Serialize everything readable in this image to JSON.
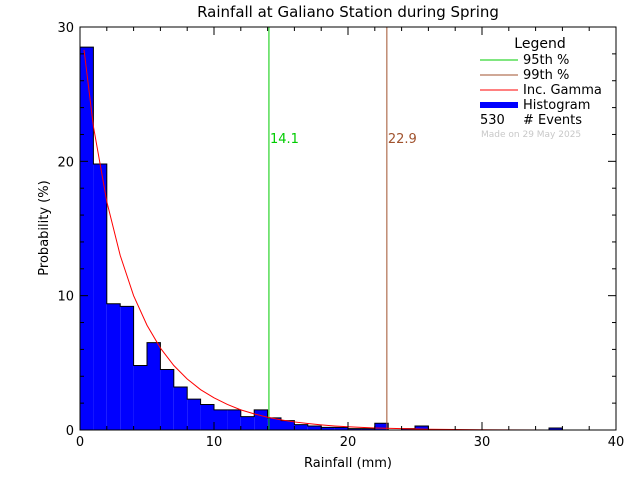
{
  "chart_data": {
    "type": "bar",
    "title": "Rainfall at Galiano Station during Spring",
    "xlabel": "Rainfall (mm)",
    "ylabel": "Probability (%)",
    "xlim": [
      0,
      40
    ],
    "ylim": [
      0,
      30
    ],
    "x_ticks": [
      0,
      10,
      20,
      30,
      40
    ],
    "y_ticks": [
      0,
      10,
      20,
      30
    ],
    "bin_width": 1,
    "histogram": {
      "name": "Histogram",
      "bin_starts": [
        0,
        1,
        2,
        3,
        4,
        5,
        6,
        7,
        8,
        9,
        10,
        11,
        12,
        13,
        14,
        15,
        16,
        17,
        18,
        19,
        20,
        21,
        22,
        23,
        24,
        25,
        26,
        27,
        28,
        29,
        30,
        31,
        32,
        33,
        34,
        35,
        36,
        37,
        38,
        39
      ],
      "values": [
        28.5,
        19.8,
        9.4,
        9.2,
        4.8,
        6.5,
        4.5,
        3.2,
        2.3,
        1.9,
        1.5,
        1.5,
        1.0,
        1.5,
        0.9,
        0.7,
        0.4,
        0.3,
        0.2,
        0.2,
        0.1,
        0.1,
        0.5,
        0.0,
        0.1,
        0.3,
        0.0,
        0.0,
        0.0,
        0.0,
        0.0,
        0.0,
        0.0,
        0.0,
        0.0,
        0.15,
        0.0,
        0.0,
        0.0,
        0.0
      ],
      "color": "#0000ff"
    },
    "gamma_curve": {
      "name": "Inc. Gamma",
      "x": [
        0.3,
        1,
        2,
        3,
        4,
        5,
        6,
        7,
        8,
        9,
        10,
        11,
        12,
        13,
        14,
        15,
        16,
        17,
        18,
        19,
        20,
        22,
        24,
        26,
        28,
        30,
        35,
        40
      ],
      "y": [
        28.3,
        22.6,
        17.0,
        13.0,
        10.0,
        7.8,
        6.1,
        4.8,
        3.8,
        3.0,
        2.4,
        1.9,
        1.5,
        1.2,
        0.95,
        0.75,
        0.6,
        0.48,
        0.38,
        0.3,
        0.24,
        0.15,
        0.1,
        0.06,
        0.04,
        0.02,
        0.0,
        0.0
      ],
      "color": "#ff0000"
    },
    "percentile_lines": [
      {
        "name": "95th %",
        "x": 14.1,
        "label": "14.1",
        "color": "#00cc00"
      },
      {
        "name": "99th %",
        "x": 22.9,
        "label": "22.9",
        "color": "#a0522d"
      }
    ],
    "legend": {
      "title": "Legend",
      "placement": "top-right",
      "entries": [
        {
          "label": "95th %",
          "color": "#00cc00",
          "style": "line"
        },
        {
          "label": "99th %",
          "color": "#a0522d",
          "style": "line"
        },
        {
          "label": "Inc. Gamma",
          "color": "#ff0000",
          "style": "line"
        },
        {
          "label": "Histogram",
          "color": "#0000ff",
          "style": "thick"
        }
      ],
      "events_count": "530",
      "events_label": "# Events",
      "made_on": "Made on 29 May 2025"
    }
  }
}
